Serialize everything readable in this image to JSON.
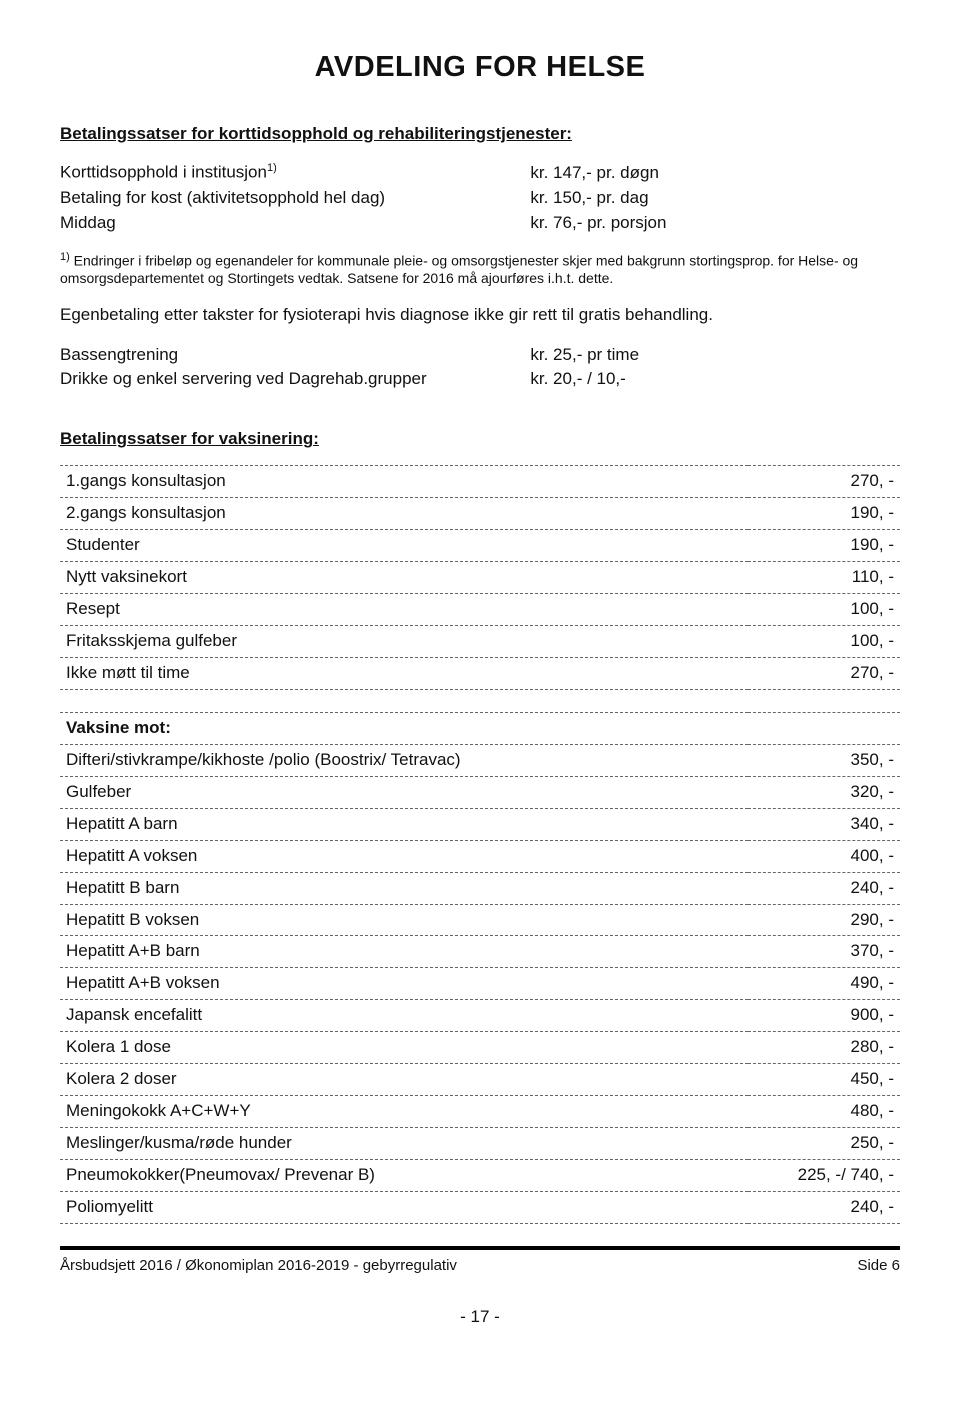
{
  "title": "AVDELING FOR HELSE",
  "section1": {
    "heading": "Betalingssatser for korttidsopphold og rehabiliteringstjenester:",
    "rows": [
      {
        "label": "Korttidsopphold i institusjon¹⁾",
        "value": "kr. 147,- pr. døgn"
      },
      {
        "label": "Betaling for kost (aktivitetsopphold hel dag)",
        "value": "kr. 150,- pr. dag"
      },
      {
        "label": "Middag",
        "value": "kr.  76,- pr. porsjon"
      }
    ],
    "footnote_prefix": "1)",
    "footnote": "Endringer i fribeløp og egenandeler for kommunale pleie- og omsorgstjenester skjer med bakgrunn stortingsprop. for Helse- og omsorgsdepartementet og Stortingets vedtak. Satsene for 2016 må ajourføres i.h.t. dette.",
    "para": "Egenbetaling etter takster for fysioterapi hvis diagnose ikke gir rett til gratis behandling.",
    "rows2": [
      {
        "label": "Bassengtrening",
        "value": "kr. 25,- pr time"
      },
      {
        "label": "Drikke og enkel servering ved Dagrehab.grupper",
        "value": "kr. 20,- / 10,-"
      }
    ]
  },
  "section2": {
    "heading": "Betalingssatser for vaksinering:",
    "table1": [
      {
        "label": "1.gangs konsultasjon",
        "price": "270, -"
      },
      {
        "label": "2.gangs konsultasjon",
        "price": "190, -"
      },
      {
        "label": "Studenter",
        "price": "190, -"
      },
      {
        "label": "Nytt vaksinekort",
        "price": "110, -"
      },
      {
        "label": "Resept",
        "price": "100, -"
      },
      {
        "label": "Fritaksskjema gulfeber",
        "price": "100, -"
      },
      {
        "label": "Ikke møtt til time",
        "price": "270, -"
      }
    ],
    "table2_header": "Vaksine mot:",
    "table2": [
      {
        "label": "Difteri/stivkrampe/kikhoste /polio (Boostrix/ Tetravac)",
        "price": "350, -"
      },
      {
        "label": "Gulfeber",
        "price": "320, -"
      },
      {
        "label": "Hepatitt A barn",
        "price": "340, -"
      },
      {
        "label": "Hepatitt A voksen",
        "price": "400, -"
      },
      {
        "label": "Hepatitt B barn",
        "price": "240, -"
      },
      {
        "label": "Hepatitt B voksen",
        "price": "290, -"
      },
      {
        "label": "Hepatitt A+B barn",
        "price": "370, -"
      },
      {
        "label": "Hepatitt A+B voksen",
        "price": "490, -"
      },
      {
        "label": "Japansk encefalitt",
        "price": "900, -"
      },
      {
        "label": "Kolera 1 dose",
        "price": "280, -"
      },
      {
        "label": "Kolera 2 doser",
        "price": "450, -"
      },
      {
        "label": "Meningokokk A+C+W+Y",
        "price": "480, -"
      },
      {
        "label": "Meslinger/kusma/røde hunder",
        "price": "250, -"
      },
      {
        "label": "Pneumokokker(Pneumovax/ Prevenar B)",
        "price": "225, -/ 740, -"
      },
      {
        "label": "Poliomyelitt",
        "price": "240, -"
      }
    ]
  },
  "footer": {
    "left": "Årsbudsjett 2016 / Økonomiplan 2016-2019 - gebyrregulativ",
    "right": "Side 6"
  },
  "pagenum": "- 17 -"
}
